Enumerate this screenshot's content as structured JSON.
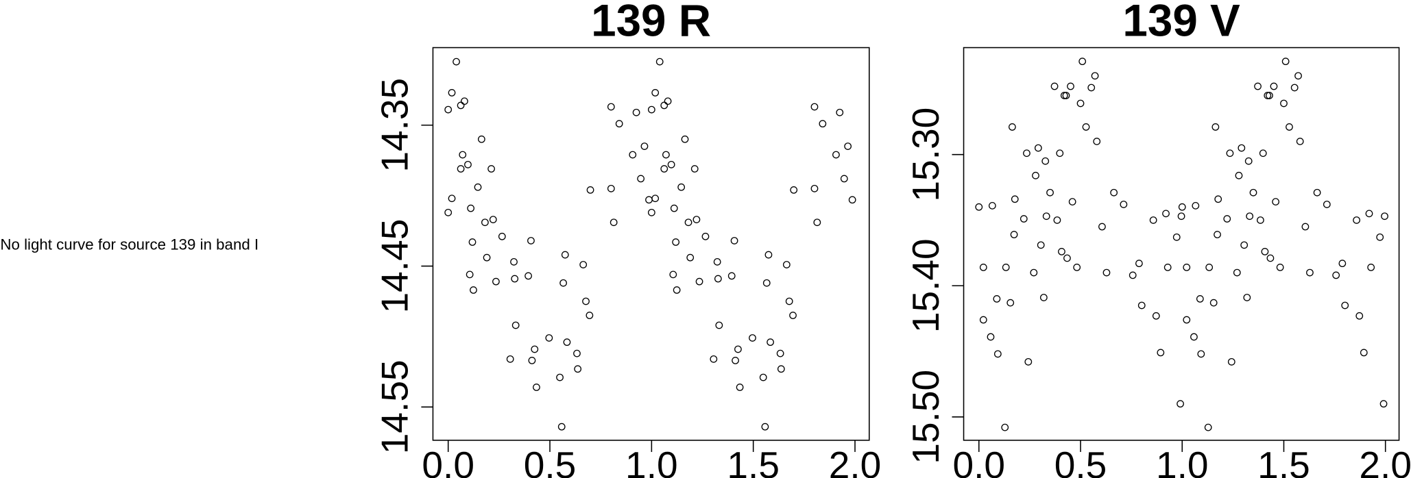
{
  "message": "No light curve for source 139 in band I",
  "chart_data": [
    {
      "type": "scatter",
      "title": "139 R",
      "color": "#000000",
      "xlim": [
        -0.075,
        2.07
      ],
      "ylim": [
        14.5736,
        14.295
      ],
      "xticks": [
        {
          "value": 0,
          "label": "0.0"
        },
        0.5,
        {
          "value": 1,
          "label": "1.0"
        },
        1.5,
        {
          "value": 2,
          "label": "2.0"
        }
      ],
      "yticks": [
        14.35,
        14.45,
        14.55
      ],
      "x": [
        0,
        0,
        0.018,
        0.018,
        0.04,
        0.062,
        0.071,
        0.08,
        0.062,
        0.097,
        0.106,
        0.111,
        0.119,
        0.124,
        0.146,
        0.164,
        0.181,
        0.19,
        0.212,
        0.221,
        0.235,
        0.265,
        0.305,
        0.323,
        0.327,
        0.332,
        0.394,
        0.407,
        0.412,
        0.425,
        0.434,
        0.496,
        0.549,
        0.558,
        0.566,
        0.575,
        0.584,
        0.633,
        0.637,
        0.664,
        0.677,
        0.695,
        0.699,
        0.801,
        0.801,
        0.814,
        0.841,
        0.907,
        0.925,
        0.947,
        0.965,
        0.987,
        1,
        1,
        1.018,
        1.018,
        1.04,
        1.062,
        1.071,
        1.08,
        1.062,
        1.097,
        1.106,
        1.111,
        1.119,
        1.124,
        1.146,
        1.164,
        1.181,
        1.19,
        1.212,
        1.221,
        1.235,
        1.265,
        1.305,
        1.323,
        1.327,
        1.332,
        1.394,
        1.407,
        1.412,
        1.425,
        1.434,
        1.496,
        1.549,
        1.558,
        1.566,
        1.575,
        1.584,
        1.633,
        1.637,
        1.664,
        1.677,
        1.695,
        1.699,
        1.801,
        1.801,
        1.814,
        1.841,
        1.907,
        1.925,
        1.947,
        1.965,
        1.987
      ],
      "values": [
        14.339,
        14.412,
        14.402,
        14.327,
        14.305,
        14.336,
        14.371,
        14.333,
        14.381,
        14.378,
        14.456,
        14.409,
        14.433,
        14.467,
        14.394,
        14.36,
        14.419,
        14.444,
        14.381,
        14.417,
        14.461,
        14.429,
        14.516,
        14.447,
        14.459,
        14.492,
        14.457,
        14.432,
        14.517,
        14.509,
        14.536,
        14.501,
        14.529,
        14.564,
        14.462,
        14.442,
        14.504,
        14.512,
        14.523,
        14.449,
        14.475,
        14.485,
        14.396,
        14.337,
        14.395,
        14.419,
        14.349,
        14.371,
        14.341,
        14.388,
        14.365,
        14.403,
        14.339,
        14.412,
        14.402,
        14.327,
        14.305,
        14.336,
        14.371,
        14.333,
        14.381,
        14.378,
        14.456,
        14.409,
        14.433,
        14.467,
        14.394,
        14.36,
        14.419,
        14.444,
        14.381,
        14.417,
        14.461,
        14.429,
        14.516,
        14.447,
        14.459,
        14.492,
        14.457,
        14.432,
        14.517,
        14.509,
        14.536,
        14.501,
        14.529,
        14.564,
        14.462,
        14.442,
        14.504,
        14.512,
        14.523,
        14.449,
        14.475,
        14.485,
        14.396,
        14.337,
        14.395,
        14.419,
        14.349,
        14.371,
        14.341,
        14.388,
        14.365,
        14.403
      ]
    },
    {
      "type": "scatter",
      "title": "139 V",
      "color": "#000000",
      "xlim": [
        -0.075,
        2.067
      ],
      "ylim": [
        15.5178,
        15.2185
      ],
      "xticks": [
        {
          "value": 0,
          "label": "0.0"
        },
        0.5,
        {
          "value": 1,
          "label": "1.0"
        },
        1.5,
        {
          "value": 2,
          "label": "2.0"
        }
      ],
      "yticks": [
        {
          "value": 15.3,
          "label": "15.30"
        },
        {
          "value": 15.4,
          "label": "15.40"
        },
        {
          "value": 15.5,
          "label": "15.50"
        }
      ],
      "x": [
        0,
        0.022,
        0.022,
        0.058,
        0.066,
        0.088,
        0.093,
        0.128,
        0.133,
        0.155,
        0.164,
        0.173,
        0.177,
        0.221,
        0.235,
        0.243,
        0.27,
        0.279,
        0.292,
        0.305,
        0.319,
        0.327,
        0.332,
        0.35,
        0.372,
        0.385,
        0.398,
        0.407,
        0.42,
        0.429,
        0.434,
        0.451,
        0.46,
        0.482,
        0.5,
        0.509,
        0.527,
        0.553,
        0.571,
        0.58,
        0.606,
        0.628,
        0.664,
        0.712,
        0.757,
        0.788,
        0.801,
        0.858,
        0.872,
        0.894,
        0.92,
        0.929,
        0.973,
        0.991,
        0.996,
        1,
        1.022,
        1.022,
        1.058,
        1.066,
        1.088,
        1.093,
        1.128,
        1.133,
        1.155,
        1.164,
        1.173,
        1.177,
        1.221,
        1.235,
        1.243,
        1.27,
        1.279,
        1.292,
        1.305,
        1.319,
        1.327,
        1.332,
        1.35,
        1.372,
        1.385,
        1.398,
        1.407,
        1.42,
        1.429,
        1.434,
        1.451,
        1.46,
        1.482,
        1.5,
        1.509,
        1.527,
        1.553,
        1.571,
        1.58,
        1.606,
        1.628,
        1.664,
        1.712,
        1.757,
        1.788,
        1.801,
        1.858,
        1.872,
        1.894,
        1.92,
        1.929,
        1.973,
        1.991,
        1.996
      ],
      "values": [
        15.34,
        15.386,
        15.426,
        15.439,
        15.339,
        15.41,
        15.452,
        15.508,
        15.386,
        15.413,
        15.279,
        15.361,
        15.334,
        15.349,
        15.299,
        15.458,
        15.39,
        15.316,
        15.295,
        15.369,
        15.409,
        15.305,
        15.347,
        15.329,
        15.248,
        15.35,
        15.299,
        15.374,
        15.255,
        15.255,
        15.379,
        15.248,
        15.336,
        15.386,
        15.261,
        15.229,
        15.279,
        15.249,
        15.24,
        15.29,
        15.355,
        15.39,
        15.329,
        15.338,
        15.392,
        15.383,
        15.415,
        15.35,
        15.423,
        15.451,
        15.345,
        15.386,
        15.363,
        15.49,
        15.347,
        15.34,
        15.386,
        15.426,
        15.439,
        15.339,
        15.41,
        15.452,
        15.508,
        15.386,
        15.413,
        15.279,
        15.361,
        15.334,
        15.349,
        15.299,
        15.458,
        15.39,
        15.316,
        15.295,
        15.369,
        15.409,
        15.305,
        15.347,
        15.329,
        15.248,
        15.35,
        15.299,
        15.374,
        15.255,
        15.255,
        15.379,
        15.248,
        15.336,
        15.386,
        15.261,
        15.229,
        15.279,
        15.249,
        15.24,
        15.29,
        15.355,
        15.39,
        15.329,
        15.338,
        15.392,
        15.383,
        15.415,
        15.35,
        15.423,
        15.451,
        15.345,
        15.386,
        15.363,
        15.49,
        15.347
      ]
    }
  ]
}
